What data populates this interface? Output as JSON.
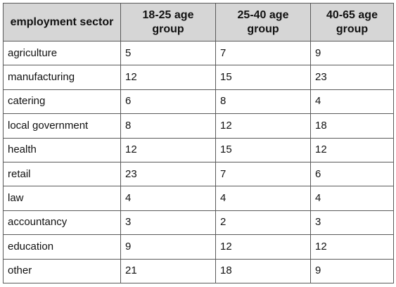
{
  "chart_data": {
    "type": "table",
    "columns": [
      "employment sector",
      "18-25 age group",
      "25-40 age group",
      "40-65 age group"
    ],
    "rows": [
      [
        "agriculture",
        "5",
        "7",
        "9"
      ],
      [
        "manufacturing",
        "12",
        "15",
        "23"
      ],
      [
        "catering",
        "6",
        "8",
        "4"
      ],
      [
        "local government",
        "8",
        "12",
        "18"
      ],
      [
        "health",
        "12",
        "15",
        "12"
      ],
      [
        "retail",
        "23",
        "7",
        "6"
      ],
      [
        "law",
        "4",
        "4",
        "4"
      ],
      [
        "accountancy",
        "3",
        "2",
        "3"
      ],
      [
        "education",
        "9",
        "12",
        "12"
      ],
      [
        "other",
        "21",
        "18",
        "9"
      ]
    ]
  }
}
